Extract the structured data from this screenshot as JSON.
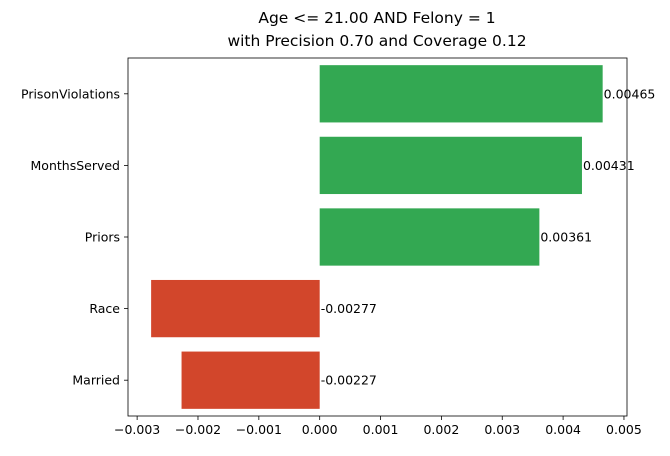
{
  "chart_data": {
    "type": "bar",
    "orientation": "horizontal",
    "title_lines": [
      "Age <= 21.00 AND Felony = 1",
      "with Precision 0.70 and Coverage 0.12"
    ],
    "categories": [
      "PrisonViolations",
      "MonthsServed",
      "Priors",
      "Race",
      "Married"
    ],
    "values": [
      0.00465,
      0.00431,
      0.00361,
      -0.00277,
      -0.00227
    ],
    "value_labels": [
      "0.00465",
      "0.00431",
      "0.00361",
      "-0.00277",
      "-0.00227"
    ],
    "x_ticks": [
      -0.003,
      -0.002,
      -0.001,
      0.0,
      0.001,
      0.002,
      0.003,
      0.004,
      0.005
    ],
    "x_tick_labels": [
      "−0.003",
      "−0.002",
      "−0.001",
      "0.000",
      "0.001",
      "0.002",
      "0.003",
      "0.004",
      "0.005"
    ],
    "xlim": [
      -0.00315,
      0.00505
    ],
    "xlabel": "",
    "ylabel": "",
    "grid": false,
    "colors": {
      "positive": "#33a852",
      "negative": "#d2462b"
    }
  }
}
